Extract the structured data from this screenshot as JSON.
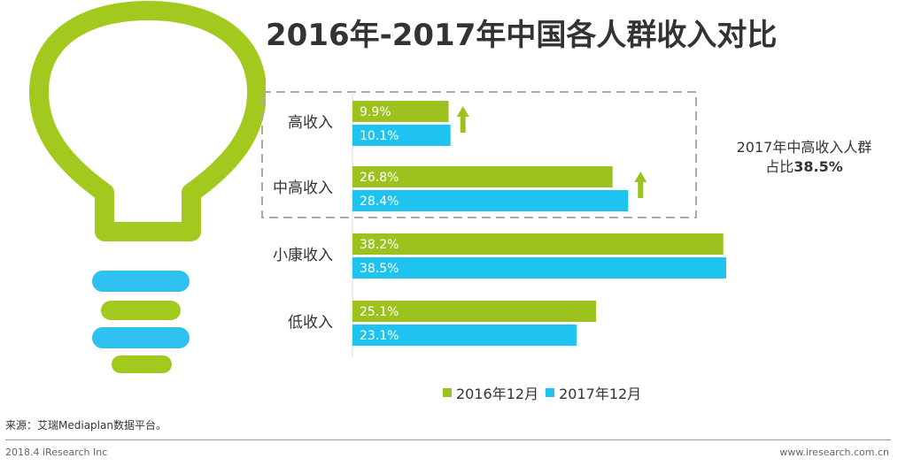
{
  "title": "2016年-2017年中国各人群收入对比",
  "colors": {
    "series_2016": "#9DC21F",
    "series_2017": "#1FC3EF",
    "arrow": "#9DC21F",
    "bulb_green": "#A3C91E",
    "bulb_blue": "#2EC0EE"
  },
  "callout": {
    "line1": "2017年中高收入人群",
    "line2_prefix": "占比",
    "line2_value": "38.5%"
  },
  "chart_data": {
    "type": "bar",
    "orientation": "horizontal",
    "categories": [
      "高收入",
      "中高收入",
      "小康收入",
      "低收入"
    ],
    "series": [
      {
        "name": "2016年12月",
        "values": [
          9.9,
          26.8,
          38.2,
          25.1
        ],
        "labels": [
          "9.9%",
          "26.8%",
          "38.2%",
          "25.1%"
        ]
      },
      {
        "name": "2017年12月",
        "values": [
          10.1,
          28.4,
          38.5,
          23.1
        ],
        "labels": [
          "10.1%",
          "28.4%",
          "38.5%",
          "23.1%"
        ]
      }
    ],
    "up_arrows": [
      "高收入",
      "中高收入"
    ],
    "highlight_box": [
      "高收入",
      "中高收入"
    ],
    "xlim": [
      0,
      40
    ],
    "legend": "bottom",
    "grid": false
  },
  "footer": {
    "source": "来源：艾瑞Mediaplan数据平台。",
    "left": "2018.4 iResearch Inc",
    "right": "www.iresearch.com.cn"
  }
}
